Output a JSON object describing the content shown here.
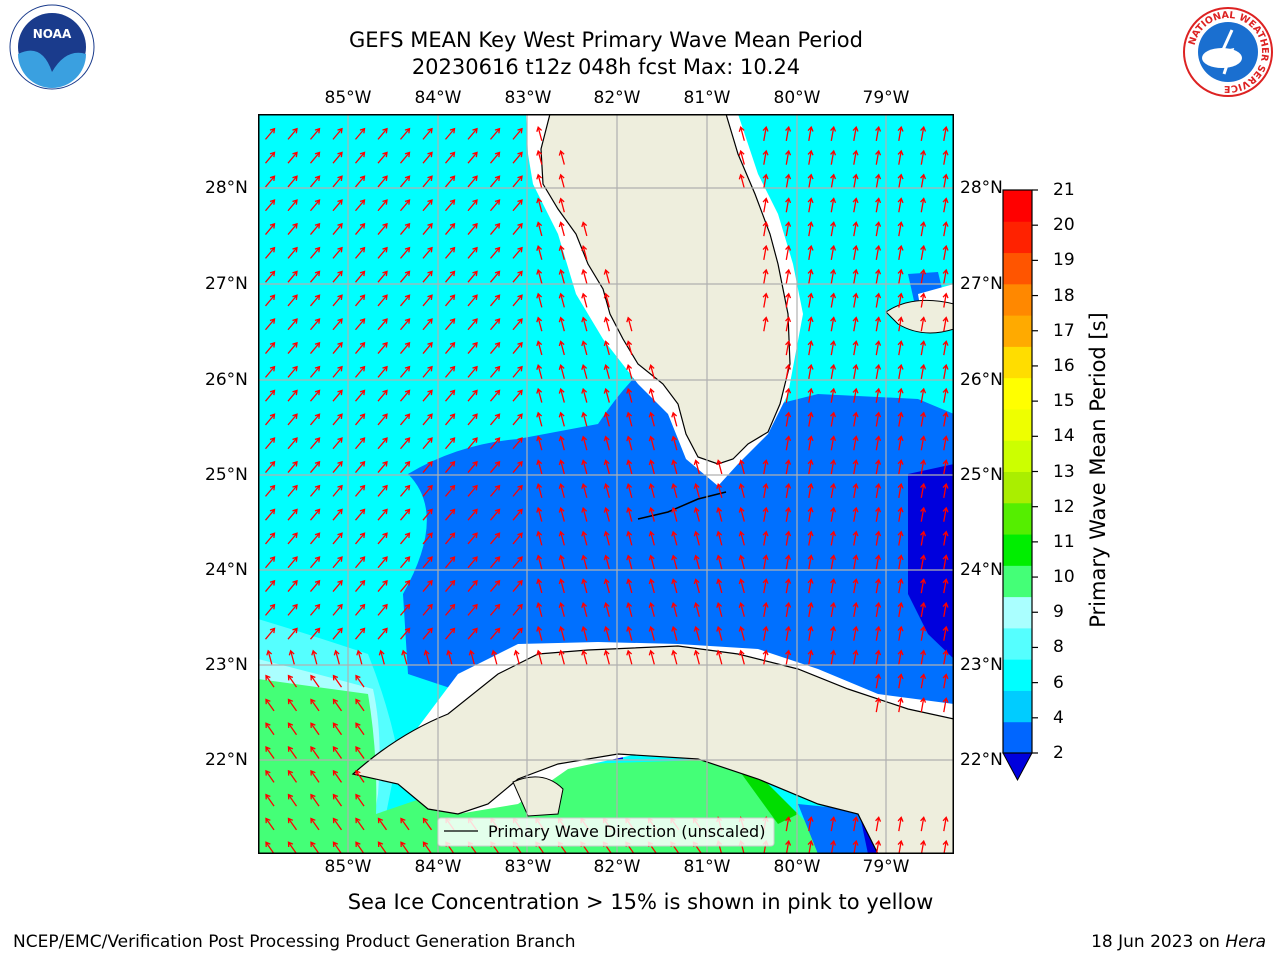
{
  "title": {
    "line1": "GEFS MEAN Key West Primary Wave Mean Period",
    "line2": "20230616 t12z 048h fcst   Max: 10.24"
  },
  "map": {
    "lon_labels": [
      "85°W",
      "84°W",
      "83°W",
      "82°W",
      "81°W",
      "80°W",
      "79°W"
    ],
    "lat_labels": [
      "28°N",
      "27°N",
      "26°N",
      "25°N",
      "24°N",
      "23°N",
      "22°N"
    ],
    "legend_label": "Primary Wave Direction (unscaled)",
    "colors": {
      "land": "#eeeedd",
      "arrow": "#ff0000",
      "grid": "#b0b0b0"
    }
  },
  "colorbar": {
    "label": "Primary Wave Mean Period [s]",
    "ticks": [
      "21",
      "20",
      "19",
      "18",
      "17",
      "16",
      "15",
      "14",
      "13",
      "12",
      "11",
      "10",
      "9",
      "8",
      "6",
      "4",
      "2"
    ],
    "colors": [
      "#0066ff",
      "#00ccff",
      "#00ffff",
      "#55ffff",
      "#aaffff",
      "#44ff77",
      "#00ee00",
      "#55ee00",
      "#aaee00",
      "#ccff00",
      "#eeff00",
      "#ffff00",
      "#ffdd00",
      "#ffaa00",
      "#ff8800",
      "#ff5500",
      "#ff2200",
      "#ff0000"
    ],
    "under_color": "#0000dd"
  },
  "note": "Sea Ice Concentration > 15% is shown in pink to yellow",
  "footer": {
    "left": "NCEP/EMC/Verification Post Processing Product Generation Branch",
    "right_prefix": "18 Jun 2023 on ",
    "right_emph": "Hera"
  },
  "logos": {
    "left_text": "NOAA",
    "right_text": "NATIONAL WEATHER SERVICE"
  }
}
